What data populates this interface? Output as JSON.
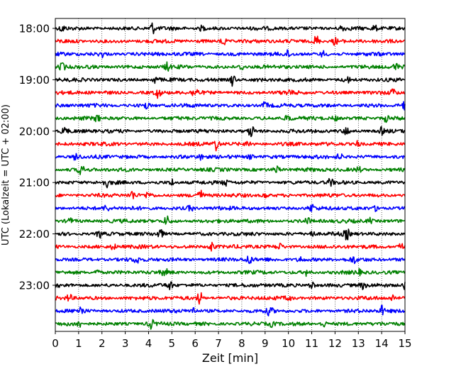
{
  "chart_data": {
    "type": "line",
    "title": "",
    "xlabel": "Zeit  [min]",
    "ylabel": "UTC (Lokalzeit = UTC + 02:00)",
    "xlim": [
      0,
      15
    ],
    "x_ticks": [
      "0",
      "1",
      "2",
      "3",
      "4",
      "5",
      "6",
      "7",
      "8",
      "9",
      "10",
      "11",
      "12",
      "13",
      "14",
      "15"
    ],
    "y_tick_labels": [
      "18:00",
      "19:00",
      "20:00",
      "21:00",
      "22:00",
      "23:00"
    ],
    "grid": "vertical dotted at each minute",
    "colors": [
      "#000000",
      "#ff0000",
      "#0000ff",
      "#008000"
    ],
    "series": [
      {
        "trace_start": "18:00",
        "events": [
          [
            4.15,
            0.55
          ],
          [
            0.3,
            0.3
          ],
          [
            6.3,
            0.25
          ],
          [
            12.3,
            0.3
          ],
          [
            13.7,
            0.25
          ]
        ]
      },
      {
        "trace_start": "18:15",
        "events": [
          [
            7.2,
            0.5
          ],
          [
            11.2,
            0.6
          ],
          [
            12.0,
            0.3
          ]
        ]
      },
      {
        "trace_start": "18:30",
        "events": [
          [
            2.0,
            0.25
          ],
          [
            10.0,
            0.3
          ],
          [
            11.5,
            0.25
          ]
        ]
      },
      {
        "trace_start": "18:45",
        "events": [
          [
            0.3,
            0.4
          ],
          [
            4.8,
            0.35
          ],
          [
            8.0,
            0.3
          ],
          [
            14.6,
            0.3
          ]
        ]
      },
      {
        "trace_start": "19:00",
        "events": [
          [
            7.6,
            0.6
          ],
          [
            12.5,
            0.35
          ],
          [
            4.3,
            0.3
          ]
        ]
      },
      {
        "trace_start": "19:15",
        "events": [
          [
            4.4,
            0.45
          ],
          [
            6.0,
            0.55
          ],
          [
            14.5,
            0.3
          ],
          [
            10.0,
            0.25
          ]
        ]
      },
      {
        "trace_start": "19:30",
        "events": [
          [
            3.9,
            0.3
          ],
          [
            15.0,
            0.45
          ],
          [
            9.0,
            0.3
          ]
        ]
      },
      {
        "trace_start": "19:45",
        "events": [
          [
            1.8,
            0.3
          ],
          [
            10.0,
            0.35
          ],
          [
            12.0,
            0.25
          ],
          [
            14.2,
            0.3
          ]
        ]
      },
      {
        "trace_start": "20:00",
        "events": [
          [
            0.4,
            0.4
          ],
          [
            8.4,
            0.6
          ],
          [
            12.5,
            0.35
          ],
          [
            14.0,
            0.3
          ]
        ]
      },
      {
        "trace_start": "20:15",
        "events": [
          [
            6.9,
            0.6
          ],
          [
            8.3,
            0.3
          ],
          [
            13.0,
            0.3
          ]
        ]
      },
      {
        "trace_start": "20:30",
        "events": [
          [
            0.9,
            0.5
          ],
          [
            6.3,
            0.35
          ],
          [
            8.4,
            0.35
          ],
          [
            12.2,
            0.3
          ]
        ]
      },
      {
        "trace_start": "20:45",
        "events": [
          [
            1.1,
            0.5
          ],
          [
            9.5,
            0.4
          ],
          [
            13.0,
            0.25
          ]
        ]
      },
      {
        "trace_start": "21:00",
        "events": [
          [
            2.2,
            0.35
          ],
          [
            5.0,
            0.3
          ],
          [
            7.3,
            0.3
          ],
          [
            11.8,
            0.3
          ]
        ]
      },
      {
        "trace_start": "21:15",
        "events": [
          [
            3.3,
            0.4
          ],
          [
            6.2,
            0.55
          ],
          [
            4.0,
            0.3
          ],
          [
            9.0,
            0.25
          ]
        ]
      },
      {
        "trace_start": "21:30",
        "events": [
          [
            2.2,
            0.3
          ],
          [
            5.8,
            0.3
          ],
          [
            11.0,
            0.35
          ],
          [
            13.8,
            0.3
          ]
        ]
      },
      {
        "trace_start": "21:45",
        "events": [
          [
            4.8,
            0.45
          ],
          [
            0.6,
            0.3
          ],
          [
            10.8,
            0.3
          ],
          [
            13.5,
            0.25
          ]
        ]
      },
      {
        "trace_start": "22:00",
        "events": [
          [
            1.9,
            0.35
          ],
          [
            4.5,
            0.4
          ],
          [
            11.0,
            0.35
          ],
          [
            12.5,
            0.5
          ]
        ]
      },
      {
        "trace_start": "22:15",
        "events": [
          [
            6.7,
            0.5
          ],
          [
            14.8,
            0.45
          ],
          [
            9.6,
            0.3
          ],
          [
            2.5,
            0.25
          ]
        ]
      },
      {
        "trace_start": "22:30",
        "events": [
          [
            8.3,
            0.45
          ],
          [
            3.5,
            0.3
          ],
          [
            10.5,
            0.3
          ],
          [
            12.8,
            0.3
          ]
        ]
      },
      {
        "trace_start": "22:45",
        "events": [
          [
            4.7,
            0.35
          ],
          [
            10.8,
            0.3
          ],
          [
            13.0,
            0.25
          ],
          [
            1.8,
            0.25
          ]
        ]
      },
      {
        "trace_start": "23:00",
        "events": [
          [
            11.0,
            0.4
          ],
          [
            4.9,
            0.45
          ],
          [
            13.2,
            0.3
          ],
          [
            15.0,
            0.45
          ]
        ]
      },
      {
        "trace_start": "23:15",
        "events": [
          [
            6.2,
            0.6
          ],
          [
            0.6,
            0.35
          ],
          [
            14.5,
            0.3
          ],
          [
            10.0,
            0.25
          ]
        ]
      },
      {
        "trace_start": "23:30",
        "events": [
          [
            1.1,
            0.45
          ],
          [
            5.9,
            0.4
          ],
          [
            9.2,
            0.4
          ],
          [
            14.0,
            0.45
          ]
        ]
      },
      {
        "trace_start": "23:45",
        "events": [
          [
            4.1,
            0.45
          ],
          [
            11.5,
            0.35
          ],
          [
            9.3,
            0.25
          ],
          [
            1.0,
            0.3
          ]
        ]
      }
    ]
  }
}
